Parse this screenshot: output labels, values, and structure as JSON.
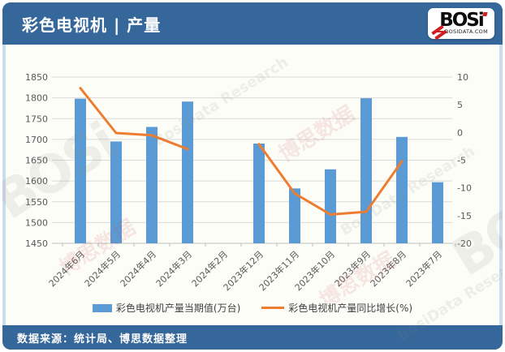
{
  "header": {
    "title": "彩色电视机 | 产量",
    "logo": {
      "text": "BOSi",
      "domain": "BOSIDATA.COM"
    }
  },
  "footer": {
    "source": "数据来源：统计局、博思数据整理"
  },
  "watermark": {
    "cn": "博思数据",
    "en": "BosiData Research",
    "logo": "BOSi"
  },
  "colors": {
    "frame_blue": "#35679a",
    "bar_blue": "#5B9BD5",
    "line_orange": "#ED7D31",
    "gridline": "#d9d9d9",
    "axis_text": "#595959"
  },
  "chart_data": {
    "type": "bar",
    "combo": "bar+line",
    "categories": [
      "2024年6月",
      "2024年5月",
      "2024年4月",
      "2024年3月",
      "2024年2月",
      "2023年12月",
      "2023年11月",
      "2023年10月",
      "2023年9月",
      "2023年8月",
      "2023年7月"
    ],
    "series": [
      {
        "name": "彩色电视机产量当期值(万台)",
        "type": "bar",
        "axis": "left",
        "color": "#5B9BD5",
        "values": [
          1798,
          1695,
          1730,
          1791,
          null,
          1690,
          1582,
          1628,
          1799,
          1706,
          1597
        ]
      },
      {
        "name": "彩色电视机产量同比增长(%)",
        "type": "line",
        "axis": "right",
        "color": "#ED7D31",
        "values": [
          8,
          -0.1,
          -0.5,
          -3,
          null,
          -2.1,
          -11,
          -14.8,
          -14.3,
          -5.2,
          null
        ]
      }
    ],
    "left_axis": {
      "min": 1450,
      "max": 1850,
      "step": 50,
      "ticks": [
        "1850",
        "1800",
        "1750",
        "1700",
        "1650",
        "1600",
        "1550",
        "1500",
        "1450"
      ]
    },
    "right_axis": {
      "min": -20,
      "max": 10,
      "step": 5,
      "ticks": [
        "10",
        "5",
        "0",
        "-5",
        "-10",
        "-15",
        "-20"
      ]
    },
    "grid": true,
    "legend_position": "bottom",
    "title": "彩色电视机 | 产量"
  }
}
